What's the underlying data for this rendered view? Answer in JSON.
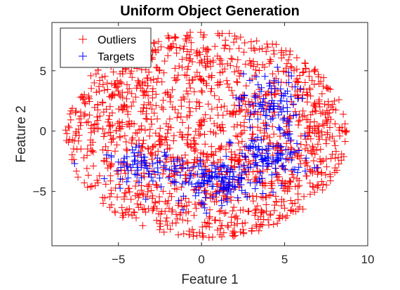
{
  "chart_data": {
    "type": "scatter",
    "title": "Uniform Object Generation",
    "xlabel": "Feature 1",
    "ylabel": "Feature 2",
    "xlim": [
      -9,
      10
    ],
    "ylim": [
      -9.5,
      9
    ],
    "xticks": [
      -5,
      0,
      5,
      10
    ],
    "yticks": [
      -5,
      0,
      5
    ],
    "grid": false,
    "legend_position": "top-left",
    "marker": "+",
    "series": [
      {
        "name": "Outliers",
        "color": "#ff0000",
        "distribution": {
          "shape": "ellipse",
          "center": [
            0.3,
            -0.3
          ],
          "radius_x": 8.5,
          "radius_y": 8.6,
          "count": 1500
        }
      },
      {
        "name": "Targets",
        "color": "#0000ff",
        "clusters": [
          {
            "center": [
              4.0,
              2.2
            ],
            "spread": [
              1.6,
              2.4
            ],
            "count": 90
          },
          {
            "center": [
              4.2,
              -2.2
            ],
            "spread": [
              2.2,
              1.6
            ],
            "count": 90
          },
          {
            "center": [
              1.0,
              -4.2
            ],
            "spread": [
              2.8,
              1.5
            ],
            "count": 140
          },
          {
            "center": [
              -3.5,
              -2.8
            ],
            "spread": [
              2.0,
              1.2
            ],
            "count": 70
          }
        ]
      }
    ]
  }
}
